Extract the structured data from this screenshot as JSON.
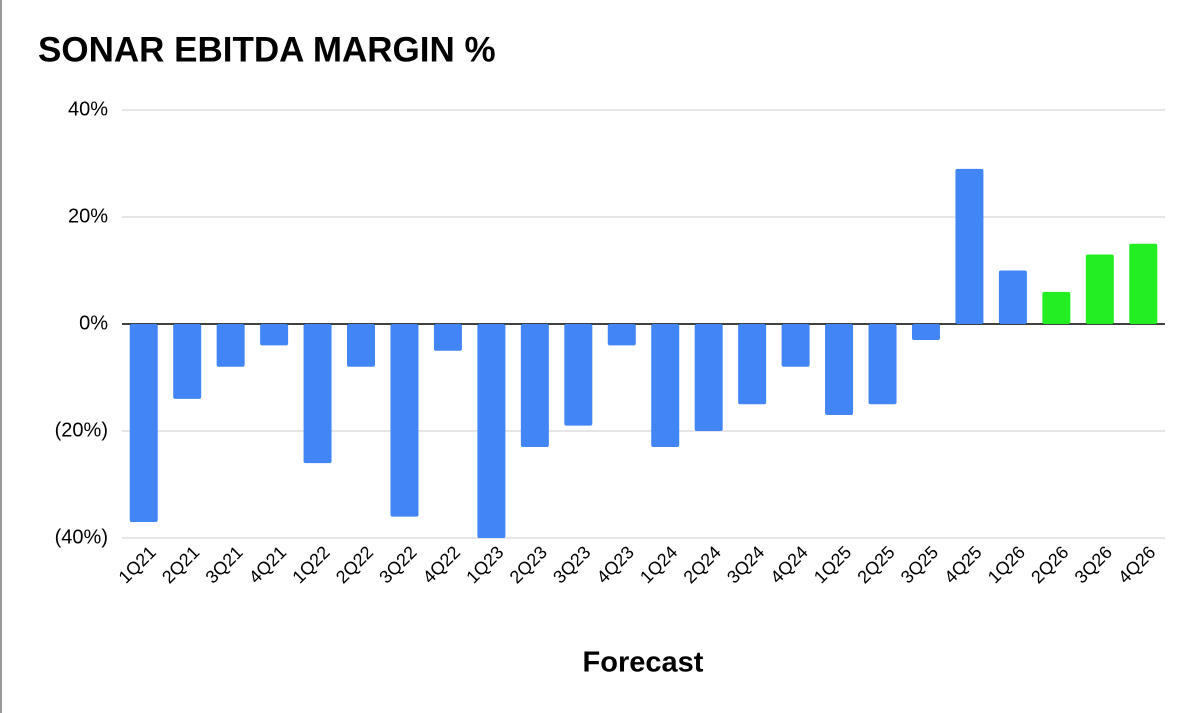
{
  "chart_data": {
    "type": "bar",
    "title": "SONAR EBITDA MARGIN %",
    "annotation": "Forecast",
    "annotation_color": "#22ee22",
    "categories": [
      "1Q21",
      "2Q21",
      "3Q21",
      "4Q21",
      "1Q22",
      "2Q22",
      "3Q22",
      "4Q22",
      "1Q23",
      "2Q23",
      "3Q23",
      "4Q23",
      "1Q24",
      "2Q24",
      "3Q24",
      "4Q24",
      "1Q25",
      "2Q25",
      "3Q25",
      "4Q25",
      "1Q26",
      "2Q26",
      "3Q26",
      "4Q26"
    ],
    "values": [
      -37,
      -14,
      -8,
      -4,
      -26,
      -8,
      -36,
      -5,
      -40,
      -23,
      -19,
      -4,
      -23,
      -20,
      -15,
      -8,
      -17,
      -15,
      -3,
      29,
      10,
      6,
      13,
      15
    ],
    "colors": [
      "#4285f4",
      "#4285f4",
      "#4285f4",
      "#4285f4",
      "#4285f4",
      "#4285f4",
      "#4285f4",
      "#4285f4",
      "#4285f4",
      "#4285f4",
      "#4285f4",
      "#4285f4",
      "#4285f4",
      "#4285f4",
      "#4285f4",
      "#4285f4",
      "#4285f4",
      "#4285f4",
      "#4285f4",
      "#4285f4",
      "#4285f4",
      "#22ee22",
      "#22ee22",
      "#22ee22"
    ],
    "ylim": [
      -40,
      40
    ],
    "yticks": [
      {
        "value": -40,
        "label": "(40%)"
      },
      {
        "value": -20,
        "label": "(20%)"
      },
      {
        "value": 0,
        "label": "0%"
      },
      {
        "value": 20,
        "label": "20%"
      },
      {
        "value": 40,
        "label": "40%"
      }
    ],
    "grid": true
  }
}
